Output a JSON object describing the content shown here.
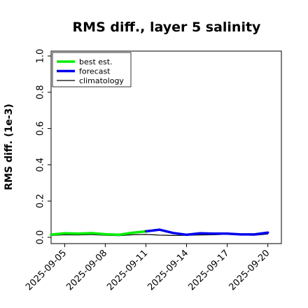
{
  "chart_data": {
    "type": "line",
    "title": "RMS diff., layer 5 salinity",
    "xlabel": "",
    "ylabel": "RMS diff. (1e-3)",
    "ylim": [
      0.0,
      1.0
    ],
    "yticks": [
      0.0,
      0.2,
      0.4,
      0.6,
      0.8,
      1.0
    ],
    "ytick_labels": [
      "0.0",
      "0.2",
      "0.4",
      "0.6",
      "0.8",
      "1.0"
    ],
    "xlim": [
      "2025-09-04",
      "2025-09-21"
    ],
    "xticks": [
      "2025-09-05",
      "2025-09-08",
      "2025-09-11",
      "2025-09-14",
      "2025-09-17",
      "2025-09-20"
    ],
    "xtick_labels": [
      "2025-09-05",
      "2025-09-08",
      "2025-09-11",
      "2025-09-14",
      "2025-09-17",
      "2025-09-20"
    ],
    "highlighted_xtick": "2025-09-11",
    "highlight_color": "#228B22",
    "grid": false,
    "legend_position": "top-left",
    "series": [
      {
        "name": "best est.",
        "color": "#00ee00",
        "x": [
          "2025-09-04",
          "2025-09-05",
          "2025-09-06",
          "2025-09-07",
          "2025-09-08",
          "2025-09-09",
          "2025-09-10",
          "2025-09-11"
        ],
        "values": [
          0.015,
          0.022,
          0.02,
          0.023,
          0.017,
          0.014,
          0.025,
          0.033
        ]
      },
      {
        "name": "forecast",
        "color": "#0000ee",
        "x": [
          "2025-09-11",
          "2025-09-12",
          "2025-09-13",
          "2025-09-14",
          "2025-09-15",
          "2025-09-16",
          "2025-09-17",
          "2025-09-18",
          "2025-09-19",
          "2025-09-20"
        ],
        "values": [
          0.033,
          0.042,
          0.024,
          0.014,
          0.022,
          0.02,
          0.02,
          0.016,
          0.016,
          0.026
        ]
      },
      {
        "name": "climatology",
        "color": "#000000",
        "x": [
          "2025-09-04",
          "2025-09-05",
          "2025-09-06",
          "2025-09-07",
          "2025-09-08",
          "2025-09-09",
          "2025-09-10",
          "2025-09-11",
          "2025-09-12",
          "2025-09-13",
          "2025-09-14",
          "2025-09-15",
          "2025-09-16",
          "2025-09-17",
          "2025-09-18",
          "2025-09-19",
          "2025-09-20"
        ],
        "values": [
          0.01,
          0.014,
          0.013,
          0.015,
          0.011,
          0.009,
          0.014,
          0.016,
          0.012,
          0.01,
          0.011,
          0.013,
          0.014,
          0.017,
          0.013,
          0.011,
          0.018
        ]
      }
    ]
  }
}
